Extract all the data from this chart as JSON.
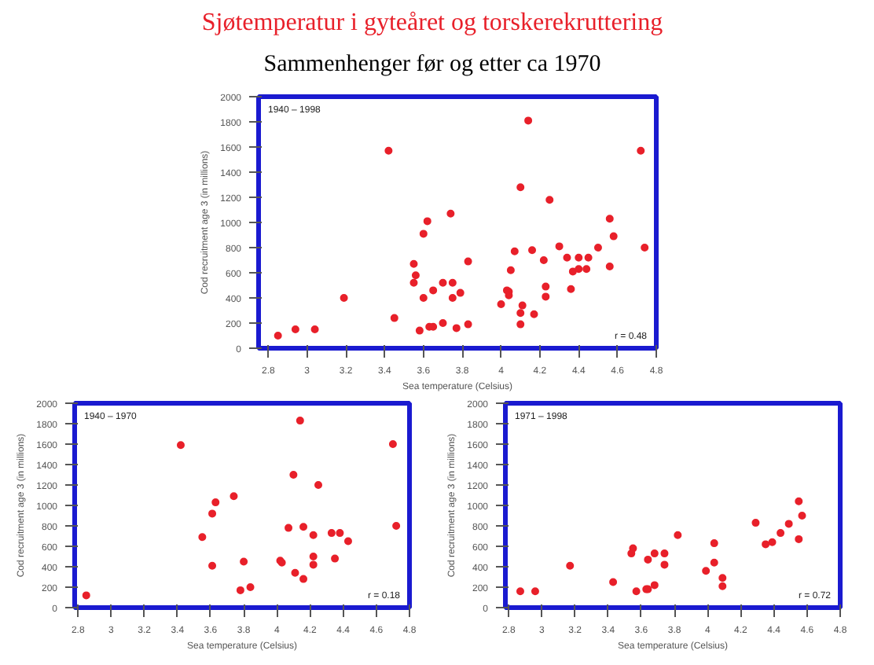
{
  "chart_data": [
    {
      "type": "scatter",
      "title": "Sjøtemperatur i gyteåret og torskerekruttering",
      "subtitle": "Sammenhenger før og etter ca 1970",
      "xlabel": "Sea temperature (Celsius)",
      "ylabel": "Cod recruitment age 3 (in millions)",
      "annotations": [
        "1940 – 1998",
        "r = 0.48"
      ],
      "marker": "circle",
      "grid": false,
      "xlim": [
        2.75,
        4.8
      ],
      "ylim": [
        0,
        2000
      ],
      "xticks": [
        2.8,
        3,
        3.2,
        3.4,
        3.6,
        3.8,
        4,
        4.2,
        4.4,
        4.6,
        4.8
      ],
      "yticks": [
        0,
        200,
        400,
        600,
        800,
        1000,
        1200,
        1400,
        1600,
        1800,
        2000
      ],
      "series": [
        {
          "color": "#e8202a",
          "x": [
            2.85,
            2.94,
            3.04,
            3.19,
            3.42,
            3.45,
            3.55,
            3.56,
            3.55,
            3.58,
            3.6,
            3.62,
            3.6,
            3.65,
            3.63,
            3.65,
            3.7,
            3.7,
            3.74,
            3.75,
            3.75,
            3.79,
            3.77,
            3.83,
            3.83,
            4.0,
            4.03,
            4.04,
            4.04,
            4.05,
            4.07,
            4.1,
            4.11,
            4.1,
            4.1,
            4.14,
            4.16,
            4.17,
            4.22,
            4.23,
            4.23,
            4.25,
            4.3,
            4.34,
            4.36,
            4.37,
            4.4,
            4.4,
            4.44,
            4.45,
            4.5,
            4.56,
            4.56,
            4.58,
            4.72,
            4.74
          ],
          "values": [
            100,
            150,
            150,
            400,
            1570,
            240,
            670,
            580,
            520,
            140,
            910,
            1010,
            400,
            460,
            170,
            170,
            200,
            520,
            1070,
            520,
            400,
            440,
            160,
            690,
            190,
            350,
            460,
            450,
            420,
            620,
            770,
            1280,
            340,
            280,
            190,
            1810,
            780,
            270,
            700,
            490,
            410,
            1180,
            810,
            720,
            470,
            610,
            720,
            630,
            630,
            720,
            800,
            1030,
            650,
            890,
            1570,
            800
          ]
        }
      ]
    },
    {
      "type": "scatter",
      "xlabel": "Sea temperature (Celsius)",
      "ylabel": "Cod recruitment age 3 (in millions)",
      "annotations": [
        "1940 – 1970",
        "r = 0.18"
      ],
      "marker": "circle",
      "grid": false,
      "xlim": [
        2.78,
        4.8
      ],
      "ylim": [
        0,
        2000
      ],
      "xticks": [
        2.8,
        3,
        3.2,
        3.4,
        3.6,
        3.8,
        4,
        4.2,
        4.4,
        4.6,
        4.8
      ],
      "yticks": [
        0,
        200,
        400,
        600,
        800,
        1000,
        1200,
        1400,
        1600,
        1800,
        2000
      ],
      "series": [
        {
          "color": "#e8202a",
          "x": [
            2.85,
            3.42,
            3.55,
            3.61,
            3.63,
            3.61,
            3.74,
            3.78,
            3.8,
            3.84,
            4.02,
            4.03,
            4.07,
            4.1,
            4.11,
            4.14,
            4.16,
            4.16,
            4.22,
            4.22,
            4.22,
            4.25,
            4.33,
            4.35,
            4.38,
            4.43,
            4.7,
            4.72
          ],
          "values": [
            120,
            1590,
            690,
            920,
            1030,
            410,
            1090,
            170,
            450,
            200,
            460,
            440,
            780,
            1300,
            340,
            1830,
            790,
            280,
            710,
            500,
            420,
            1200,
            730,
            480,
            730,
            650,
            1600,
            800
          ]
        }
      ]
    },
    {
      "type": "scatter",
      "xlabel": "Sea temperature (Celsius)",
      "ylabel": "Cod recruitment age 3 (in millions)",
      "annotations": [
        "1971 – 1998",
        "r = 0.72"
      ],
      "marker": "circle",
      "grid": false,
      "xlim": [
        2.78,
        4.8
      ],
      "ylim": [
        0,
        2000
      ],
      "xticks": [
        2.8,
        3,
        3.2,
        3.4,
        3.6,
        3.8,
        4,
        4.2,
        4.4,
        4.6,
        4.8
      ],
      "yticks": [
        0,
        200,
        400,
        600,
        800,
        1000,
        1200,
        1400,
        1600,
        1800,
        2000
      ],
      "series": [
        {
          "color": "#e8202a",
          "x": [
            2.87,
            2.96,
            3.17,
            3.43,
            3.54,
            3.55,
            3.57,
            3.63,
            3.64,
            3.64,
            3.68,
            3.68,
            3.74,
            3.74,
            3.82,
            3.99,
            4.04,
            4.04,
            4.09,
            4.09,
            4.29,
            4.35,
            4.39,
            4.44,
            4.49,
            4.55,
            4.57,
            4.55
          ],
          "values": [
            160,
            160,
            410,
            250,
            530,
            580,
            160,
            180,
            470,
            180,
            220,
            530,
            530,
            420,
            710,
            360,
            630,
            440,
            290,
            210,
            830,
            620,
            640,
            730,
            820,
            1040,
            900,
            670
          ]
        }
      ]
    }
  ]
}
